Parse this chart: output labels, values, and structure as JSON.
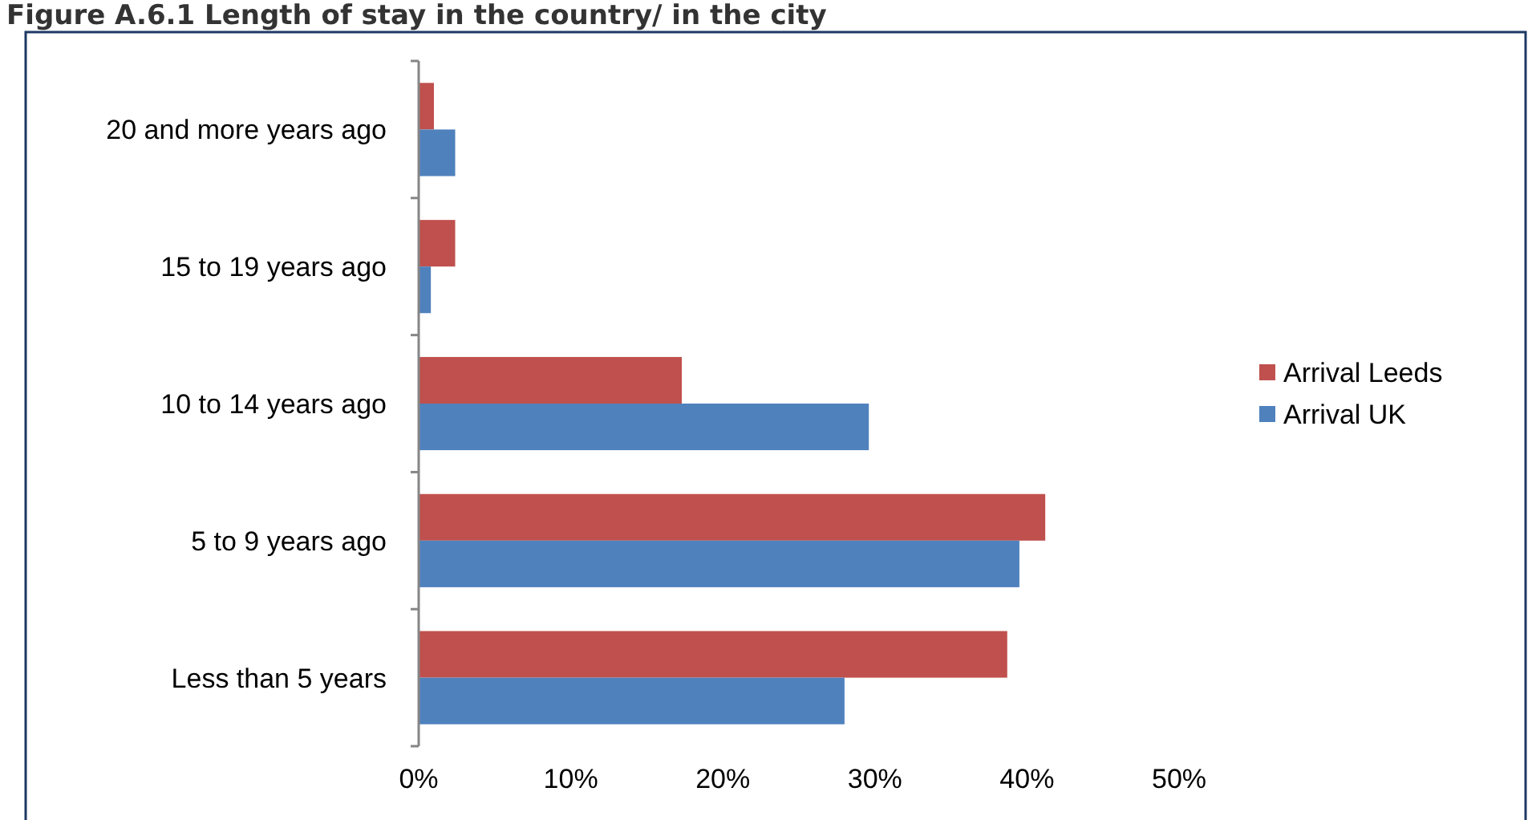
{
  "chart_data": {
    "type": "bar",
    "orientation": "horizontal",
    "title": "Figure A.6.1 Length of stay in the country/ in the city",
    "categories": [
      "20 and more years ago",
      "15 to 19 years ago",
      "10 to 14 years ago",
      "5 to 9 years ago",
      "Less than 5 years"
    ],
    "series": [
      {
        "name": "Arrival Leeds",
        "color": "#c0504d",
        "values": [
          1.0,
          2.4,
          17.3,
          41.2,
          38.7
        ]
      },
      {
        "name": "Arrival UK",
        "color": "#4f81bd",
        "values": [
          2.4,
          0.8,
          29.6,
          39.5,
          28.0
        ]
      }
    ],
    "xlim": [
      0,
      50
    ],
    "xticks": [
      {
        "value": 0,
        "label": "0%"
      },
      {
        "value": 10,
        "label": "10%"
      },
      {
        "value": 20,
        "label": "20%"
      },
      {
        "value": 30,
        "label": "30%"
      },
      {
        "value": 40,
        "label": "40%"
      },
      {
        "value": 50,
        "label": "50%"
      }
    ],
    "grid": false,
    "legend": "right"
  }
}
